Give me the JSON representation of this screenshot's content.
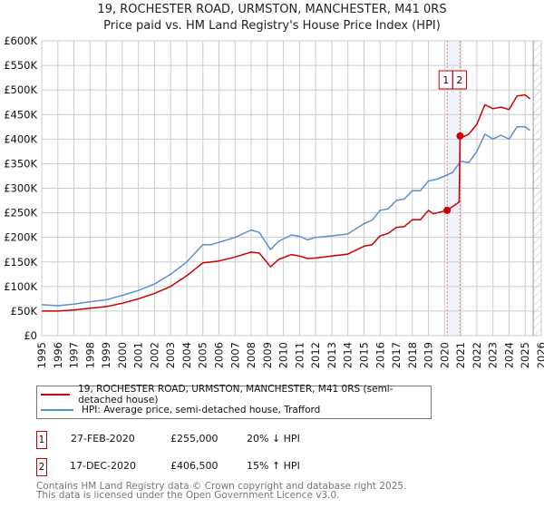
{
  "chart_data": {
    "type": "line",
    "title": "19, ROCHESTER ROAD, URMSTON, MANCHESTER, M41 0RS",
    "subtitle": "Price paid vs. HM Land Registry's House Price Index (HPI)",
    "xlim": [
      1995,
      2026
    ],
    "ylim": [
      0,
      600000
    ],
    "x_ticks": [
      "1995",
      "1996",
      "1997",
      "1998",
      "1999",
      "2000",
      "2001",
      "2002",
      "2003",
      "2004",
      "2005",
      "2006",
      "2007",
      "2008",
      "2009",
      "2010",
      "2011",
      "2012",
      "2013",
      "2014",
      "2015",
      "2016",
      "2017",
      "2018",
      "2019",
      "2020",
      "2021",
      "2022",
      "2023",
      "2024",
      "2025",
      "2026"
    ],
    "y_ticks": [
      {
        "v": 0,
        "l": "£0"
      },
      {
        "v": 50000,
        "l": "£50K"
      },
      {
        "v": 100000,
        "l": "£100K"
      },
      {
        "v": 150000,
        "l": "£150K"
      },
      {
        "v": 200000,
        "l": "£200K"
      },
      {
        "v": 250000,
        "l": "£250K"
      },
      {
        "v": 300000,
        "l": "£300K"
      },
      {
        "v": 350000,
        "l": "£350K"
      },
      {
        "v": 400000,
        "l": "£400K"
      },
      {
        "v": 450000,
        "l": "£450K"
      },
      {
        "v": 500000,
        "l": "£500K"
      },
      {
        "v": 550000,
        "l": "£550K"
      },
      {
        "v": 600000,
        "l": "£600K"
      }
    ],
    "grid": true,
    "series": [
      {
        "name": "19, ROCHESTER ROAD, URMSTON, MANCHESTER, M41 0RS (semi-detached house)",
        "color": "#cc0000",
        "x": [
          1995,
          1996,
          1997,
          1998,
          1999,
          2000,
          2001,
          2002,
          2003,
          2004,
          2005,
          2006,
          2007,
          2008,
          2008.5,
          2009.2,
          2009.7,
          2010.5,
          2011,
          2011.5,
          2012,
          2013,
          2014,
          2015,
          2015.5,
          2016,
          2016.5,
          2017,
          2017.5,
          2018,
          2018.5,
          2019,
          2019.3,
          2020.16,
          2020.9,
          2020.96,
          2021.2,
          2021.5,
          2022,
          2022.5,
          2023,
          2023.5,
          2024,
          2024.5,
          2025,
          2025.3
        ],
        "y": [
          50000,
          50000,
          52000,
          56000,
          59000,
          66000,
          75000,
          86000,
          100000,
          122000,
          148000,
          152000,
          160000,
          170000,
          168000,
          140000,
          155000,
          165000,
          162000,
          157000,
          158000,
          162000,
          166000,
          182000,
          185000,
          203000,
          208000,
          220000,
          222000,
          236000,
          236000,
          255000,
          248000,
          255000,
          272000,
          406500,
          405000,
          410000,
          430000,
          470000,
          462000,
          465000,
          460000,
          488000,
          490000,
          482000
        ]
      },
      {
        "name": "HPI: Average price, semi-detached house, Trafford",
        "color": "#5b8fd4",
        "x": [
          1995,
          1996,
          1997,
          1998,
          1999,
          2000,
          2001,
          2002,
          2003,
          2004,
          2005,
          2005.5,
          2006,
          2007,
          2008,
          2008.5,
          2009.2,
          2009.7,
          2010.5,
          2011,
          2011.5,
          2012,
          2013,
          2014,
          2015,
          2015.5,
          2016,
          2016.5,
          2017,
          2017.5,
          2018,
          2018.5,
          2019,
          2019.5,
          2020,
          2020.5,
          2021,
          2021.5,
          2022,
          2022.5,
          2023,
          2023.5,
          2024,
          2024.5,
          2025,
          2025.3
        ],
        "y": [
          63000,
          61000,
          64000,
          69000,
          73000,
          82000,
          92000,
          105000,
          125000,
          150000,
          185000,
          185000,
          190000,
          200000,
          215000,
          210000,
          175000,
          192000,
          205000,
          202000,
          195000,
          200000,
          203000,
          207000,
          228000,
          235000,
          255000,
          258000,
          275000,
          278000,
          295000,
          295000,
          315000,
          318000,
          325000,
          332000,
          355000,
          352000,
          375000,
          410000,
          400000,
          408000,
          400000,
          425000,
          425000,
          418000
        ]
      }
    ],
    "annotations": [
      {
        "label": "1",
        "x": 2020.16,
        "y": 255000
      },
      {
        "label": "2",
        "x": 2020.96,
        "y": 406500
      }
    ],
    "forecast_hatch_from": 2025.5
  },
  "legend": {
    "red": "19, ROCHESTER ROAD, URMSTON, MANCHESTER, M41 0RS (semi-detached house)",
    "blue": "HPI: Average price, semi-detached house, Trafford"
  },
  "transactions": [
    {
      "num": "1",
      "date": "27-FEB-2020",
      "price": "£255,000",
      "hpi": "20% ↓ HPI"
    },
    {
      "num": "2",
      "date": "17-DEC-2020",
      "price": "£406,500",
      "hpi": "15% ↑ HPI"
    }
  ],
  "footer": {
    "line1": "Contains HM Land Registry data © Crown copyright and database right 2025.",
    "line2": "This data is licensed under the Open Government Licence v3.0."
  }
}
